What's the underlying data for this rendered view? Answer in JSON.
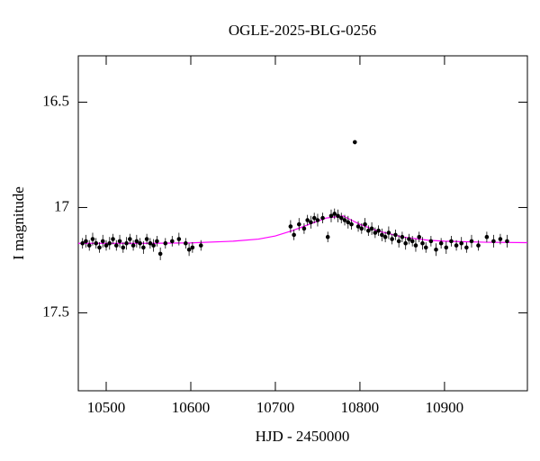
{
  "chart_data": {
    "type": "scatter",
    "title": "OGLE-2025-BLG-0256",
    "x_label": "HJD - 2450000",
    "y_label": "I magnitude",
    "xlim": [
      10467,
      10998
    ],
    "ylim": [
      17.87,
      16.28
    ],
    "invert_y": true,
    "xticks": [
      10500,
      10600,
      10700,
      10800,
      10900
    ],
    "yticks": [
      16.5,
      17,
      17.5
    ],
    "color": "#000000",
    "x": [
      10472,
      10476,
      10480,
      10484,
      10488,
      10492,
      10496,
      10500,
      10504,
      10508,
      10512,
      10516,
      10520,
      10524,
      10528,
      10532,
      10536,
      10540,
      10544,
      10548,
      10552,
      10556,
      10560,
      10564,
      10570,
      10578,
      10586,
      10594,
      10598,
      10602,
      10612,
      10718,
      10722,
      10728,
      10734,
      10738,
      10742,
      10746,
      10750,
      10756,
      10762,
      10766,
      10770,
      10774,
      10778,
      10782,
      10786,
      10790,
      10794,
      10798,
      10802,
      10806,
      10810,
      10814,
      10818,
      10822,
      10826,
      10830,
      10834,
      10838,
      10842,
      10846,
      10850,
      10854,
      10858,
      10862,
      10866,
      10870,
      10874,
      10878,
      10884,
      10890,
      10896,
      10902,
      10908,
      10914,
      10920,
      10926,
      10932,
      10940,
      10950,
      10958,
      10966,
      10974
    ],
    "values": [
      17.17,
      17.16,
      17.18,
      17.15,
      17.17,
      17.19,
      17.16,
      17.18,
      17.17,
      17.15,
      17.18,
      17.16,
      17.19,
      17.17,
      17.15,
      17.18,
      17.16,
      17.17,
      17.19,
      17.15,
      17.17,
      17.18,
      17.16,
      17.22,
      17.17,
      17.16,
      17.15,
      17.17,
      17.2,
      17.19,
      17.18,
      17.09,
      17.13,
      17.08,
      17.1,
      17.06,
      17.07,
      17.05,
      17.06,
      17.05,
      17.14,
      17.04,
      17.03,
      17.04,
      17.05,
      17.06,
      17.07,
      17.08,
      16.69,
      17.09,
      17.1,
      17.08,
      17.11,
      17.1,
      17.12,
      17.11,
      17.13,
      17.14,
      17.12,
      17.15,
      17.13,
      17.16,
      17.14,
      17.17,
      17.15,
      17.16,
      17.18,
      17.14,
      17.17,
      17.19,
      17.16,
      17.2,
      17.17,
      17.19,
      17.16,
      17.18,
      17.17,
      17.19,
      17.16,
      17.18,
      17.14,
      17.16,
      17.15,
      17.16
    ],
    "errors": [
      0.025,
      0.03,
      0.025,
      0.03,
      0.025,
      0.025,
      0.03,
      0.025,
      0.03,
      0.025,
      0.025,
      0.03,
      0.025,
      0.03,
      0.025,
      0.025,
      0.03,
      0.025,
      0.03,
      0.025,
      0.025,
      0.03,
      0.025,
      0.03,
      0.025,
      0.025,
      0.03,
      0.025,
      0.03,
      0.025,
      0.025,
      0.03,
      0.025,
      0.03,
      0.025,
      0.025,
      0.03,
      0.025,
      0.03,
      0.025,
      0.025,
      0.03,
      0.025,
      0.03,
      0.025,
      0.025,
      0.03,
      0.025,
      0.01,
      0.025,
      0.025,
      0.03,
      0.025,
      0.03,
      0.025,
      0.025,
      0.03,
      0.025,
      0.03,
      0.025,
      0.025,
      0.03,
      0.025,
      0.03,
      0.025,
      0.025,
      0.03,
      0.025,
      0.03,
      0.025,
      0.025,
      0.03,
      0.025,
      0.03,
      0.025,
      0.025,
      0.03,
      0.025,
      0.03,
      0.025,
      0.025,
      0.03,
      0.025,
      0.03
    ],
    "model": {
      "color": "#ff00ff",
      "x": [
        10467,
        10500,
        10550,
        10600,
        10650,
        10680,
        10700,
        10720,
        10740,
        10760,
        10770,
        10780,
        10790,
        10800,
        10820,
        10850,
        10880,
        10900,
        10950,
        10998
      ],
      "values": [
        17.17,
        17.17,
        17.17,
        17.168,
        17.16,
        17.15,
        17.135,
        17.11,
        17.08,
        17.05,
        17.045,
        17.04,
        17.06,
        17.08,
        17.11,
        17.14,
        17.155,
        17.16,
        17.165,
        17.167
      ]
    }
  }
}
